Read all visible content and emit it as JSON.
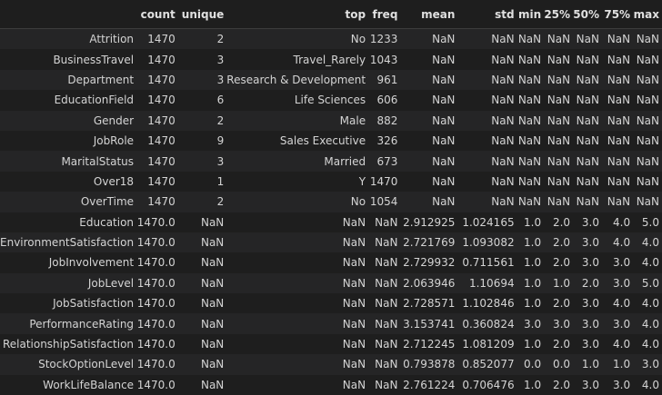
{
  "columns": [
    "",
    "count",
    "unique",
    "top",
    "freq",
    "mean",
    "std",
    "min",
    "25%",
    "50%",
    "75%",
    "max"
  ],
  "rows": [
    [
      "Attrition",
      "1470",
      "2",
      "No",
      "1233",
      "NaN",
      "NaN",
      "NaN",
      "NaN",
      "NaN",
      "NaN",
      "NaN"
    ],
    [
      "BusinessTravel",
      "1470",
      "3",
      "Travel_Rarely",
      "1043",
      "NaN",
      "NaN",
      "NaN",
      "NaN",
      "NaN",
      "NaN",
      "NaN"
    ],
    [
      "Department",
      "1470",
      "3",
      "Research & Development",
      "961",
      "NaN",
      "NaN",
      "NaN",
      "NaN",
      "NaN",
      "NaN",
      "NaN"
    ],
    [
      "EducationField",
      "1470",
      "6",
      "Life Sciences",
      "606",
      "NaN",
      "NaN",
      "NaN",
      "NaN",
      "NaN",
      "NaN",
      "NaN"
    ],
    [
      "Gender",
      "1470",
      "2",
      "Male",
      "882",
      "NaN",
      "NaN",
      "NaN",
      "NaN",
      "NaN",
      "NaN",
      "NaN"
    ],
    [
      "JobRole",
      "1470",
      "9",
      "Sales Executive",
      "326",
      "NaN",
      "NaN",
      "NaN",
      "NaN",
      "NaN",
      "NaN",
      "NaN"
    ],
    [
      "MaritalStatus",
      "1470",
      "3",
      "Married",
      "673",
      "NaN",
      "NaN",
      "NaN",
      "NaN",
      "NaN",
      "NaN",
      "NaN"
    ],
    [
      "Over18",
      "1470",
      "1",
      "Y",
      "1470",
      "NaN",
      "NaN",
      "NaN",
      "NaN",
      "NaN",
      "NaN",
      "NaN"
    ],
    [
      "OverTime",
      "1470",
      "2",
      "No",
      "1054",
      "NaN",
      "NaN",
      "NaN",
      "NaN",
      "NaN",
      "NaN",
      "NaN"
    ],
    [
      "Education",
      "1470.0",
      "NaN",
      "NaN",
      "NaN",
      "2.912925",
      "1.024165",
      "1.0",
      "2.0",
      "3.0",
      "4.0",
      "5.0"
    ],
    [
      "EnvironmentSatisfaction",
      "1470.0",
      "NaN",
      "NaN",
      "NaN",
      "2.721769",
      "1.093082",
      "1.0",
      "2.0",
      "3.0",
      "4.0",
      "4.0"
    ],
    [
      "JobInvolvement",
      "1470.0",
      "NaN",
      "NaN",
      "NaN",
      "2.729932",
      "0.711561",
      "1.0",
      "2.0",
      "3.0",
      "3.0",
      "4.0"
    ],
    [
      "JobLevel",
      "1470.0",
      "NaN",
      "NaN",
      "NaN",
      "2.063946",
      "1.10694",
      "1.0",
      "1.0",
      "2.0",
      "3.0",
      "5.0"
    ],
    [
      "JobSatisfaction",
      "1470.0",
      "NaN",
      "NaN",
      "NaN",
      "2.728571",
      "1.102846",
      "1.0",
      "2.0",
      "3.0",
      "4.0",
      "4.0"
    ],
    [
      "PerformanceRating",
      "1470.0",
      "NaN",
      "NaN",
      "NaN",
      "3.153741",
      "0.360824",
      "3.0",
      "3.0",
      "3.0",
      "3.0",
      "4.0"
    ],
    [
      "RelationshipSatisfaction",
      "1470.0",
      "NaN",
      "NaN",
      "NaN",
      "2.712245",
      "1.081209",
      "1.0",
      "2.0",
      "3.0",
      "4.0",
      "4.0"
    ],
    [
      "StockOptionLevel",
      "1470.0",
      "NaN",
      "NaN",
      "NaN",
      "0.793878",
      "0.852077",
      "0.0",
      "0.0",
      "1.0",
      "1.0",
      "3.0"
    ],
    [
      "WorkLifeBalance",
      "1470.0",
      "NaN",
      "NaN",
      "NaN",
      "2.761224",
      "0.706476",
      "1.0",
      "2.0",
      "3.0",
      "3.0",
      "4.0"
    ]
  ]
}
